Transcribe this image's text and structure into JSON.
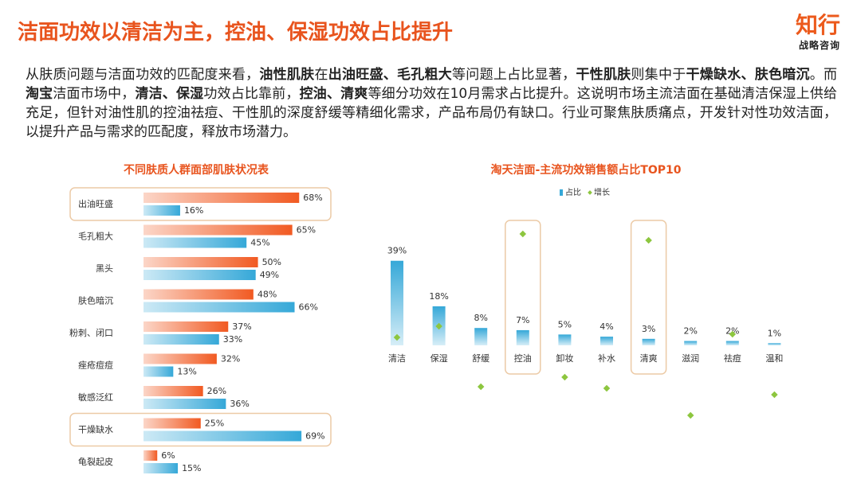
{
  "header": {
    "title": "洁面功效以清洁为主，控油、保湿功效占比提升",
    "logo": "知行",
    "logo_sub": "战略咨询"
  },
  "paragraph": {
    "runs": [
      {
        "text": "从肤质问题与洁面功效的匹配度来看，",
        "bold": false
      },
      {
        "text": "油性肌肤",
        "bold": true
      },
      {
        "text": "在",
        "bold": false
      },
      {
        "text": "出油旺盛、毛孔粗大",
        "bold": true
      },
      {
        "text": "等问题上占比显著，",
        "bold": false
      },
      {
        "text": "干性肌肤",
        "bold": true
      },
      {
        "text": "则集中于",
        "bold": false
      },
      {
        "text": "干燥缺水、肤色暗沉",
        "bold": true
      },
      {
        "text": "。而",
        "bold": false
      },
      {
        "text": "淘宝",
        "bold": true
      },
      {
        "text": "洁面市场中，",
        "bold": false
      },
      {
        "text": "清洁、保湿",
        "bold": true
      },
      {
        "text": "功效占比靠前，",
        "bold": false
      },
      {
        "text": "控油、清爽",
        "bold": true
      },
      {
        "text": "等细分功效在10月需求占比提升。这说明市场主流洁面在基础清洁保湿上供给充足，但针对油性肌的控油祛痘、干性肌的深度舒缓等精细化需求，产品布局仍有缺口。行业可聚焦肤质痛点，开发针对性功效洁面，以提升产品与需求的匹配度，释放市场潜力。",
        "bold": false
      }
    ]
  },
  "chart_data": [
    {
      "type": "bar",
      "orientation": "horizontal",
      "title": "不同肤质人群面部肌肤状况表",
      "categories": [
        "出油旺盛",
        "毛孔粗大",
        "黑头",
        "肤色暗沉",
        "粉刺、闭口",
        "痤疮痘痘",
        "敏感泛红",
        "干燥缺水",
        "龟裂起皮"
      ],
      "series": [
        {
          "color": "#f15a22",
          "values": [
            68,
            65,
            50,
            48,
            37,
            32,
            26,
            25,
            6
          ],
          "value_labels": [
            "68%",
            "65%",
            "50%",
            "48%",
            "37%",
            "32%",
            "26%",
            "25%",
            "6%"
          ]
        },
        {
          "color": "#35a8d8",
          "values": [
            16,
            45,
            49,
            66,
            33,
            13,
            36,
            69,
            15
          ],
          "value_labels": [
            "16%",
            "45%",
            "49%",
            "66%",
            "33%",
            "13%",
            "36%",
            "69%",
            "15%"
          ]
        }
      ],
      "xlim": [
        0,
        70
      ],
      "highlight": [
        0,
        7
      ]
    },
    {
      "type": "bar",
      "title": "淘天洁面-主流功效销售额占比TOP10",
      "categories": [
        "清洁",
        "保湿",
        "舒缓",
        "控油",
        "卸妆",
        "补水",
        "清爽",
        "滋润",
        "祛痘",
        "温和"
      ],
      "series": [
        {
          "name": "占比",
          "color": "#35a8d8",
          "values": [
            39,
            18,
            8,
            7,
            5,
            4,
            3,
            2,
            2,
            1
          ],
          "value_labels": [
            "39%",
            "18%",
            "8%",
            "7%",
            "5%",
            "4%",
            "3%",
            "2%",
            "2%",
            "1%"
          ]
        },
        {
          "name": "增长",
          "type": "scatter",
          "axis": "y2",
          "color": "#8dc63f",
          "values": [
            2.5,
            6,
            -13,
            35,
            -10,
            -13.5,
            33,
            -22,
            3.5,
            -15.5
          ]
        }
      ],
      "ylim": [
        0,
        40
      ],
      "y2lim": [
        -40,
        40
      ],
      "legend": "top",
      "highlight": [
        3,
        6
      ]
    }
  ]
}
